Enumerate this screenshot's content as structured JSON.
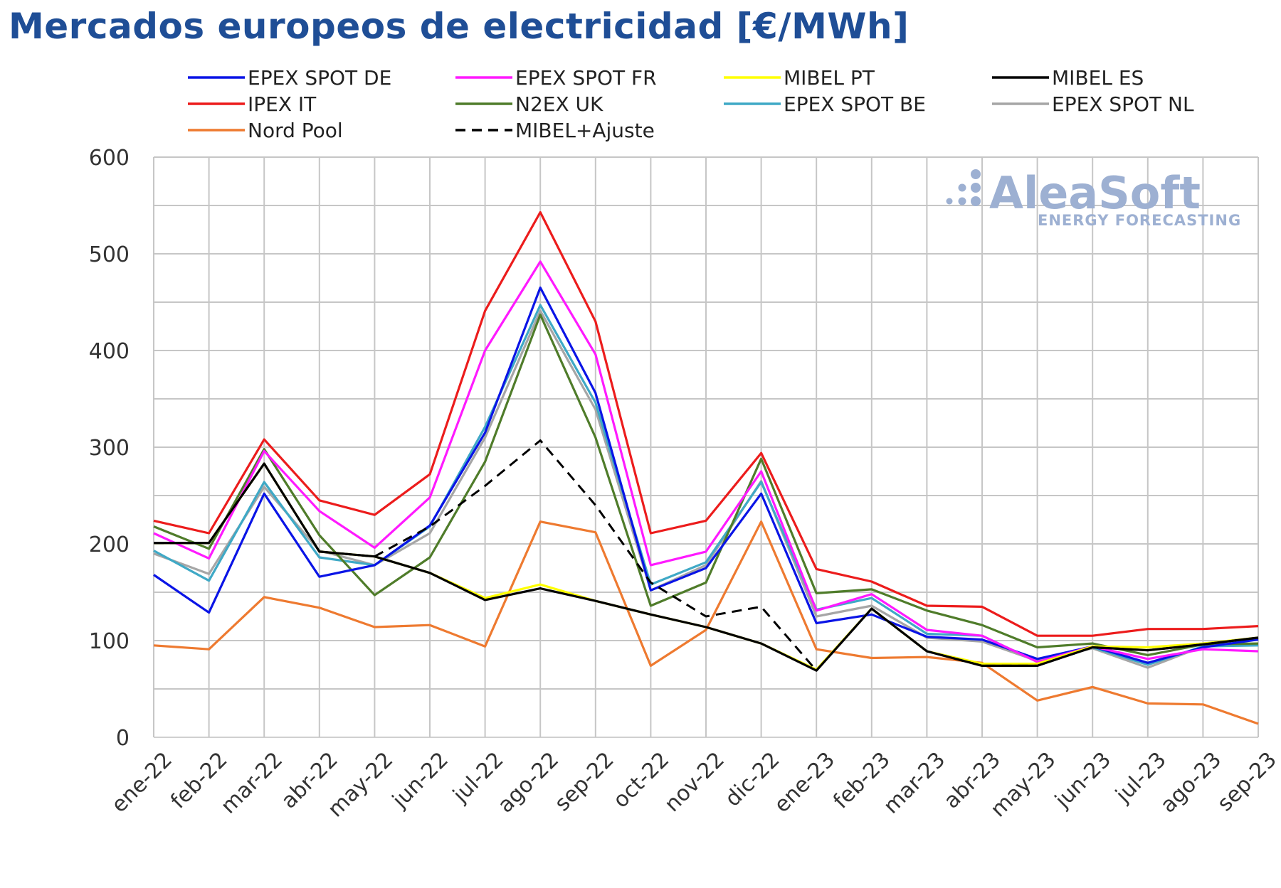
{
  "title": "Mercados europeos de electricidad [€/MWh]",
  "watermark": {
    "name": "AleaSoft",
    "tagline": "ENERGY FORECASTING"
  },
  "chart_data": {
    "type": "line",
    "title": "Mercados europeos de electricidad [€/MWh]",
    "xlabel": "",
    "ylabel": "",
    "ylim": [
      0,
      600
    ],
    "yticks": [
      0,
      100,
      200,
      300,
      400,
      500,
      600
    ],
    "grid": true,
    "legend_position": "top",
    "categories": [
      "ene-22",
      "feb-22",
      "mar-22",
      "abr-22",
      "may-22",
      "jun-22",
      "jul-22",
      "ago-22",
      "sep-22",
      "oct-22",
      "nov-22",
      "dic-22",
      "ene-23",
      "feb-23",
      "mar-23",
      "abr-23",
      "may-23",
      "jun-23",
      "jul-23",
      "ago-23",
      "sep-23"
    ],
    "series": [
      {
        "name": "EPEX SPOT DE",
        "color": "#0a14e6",
        "dash": "solid",
        "values": [
          168,
          129,
          252,
          166,
          178,
          219,
          315,
          465,
          356,
          152,
          175,
          252,
          118,
          127,
          104,
          101,
          81,
          94,
          77,
          93,
          101
        ]
      },
      {
        "name": "EPEX SPOT FR",
        "color": "#ff1aff",
        "dash": "solid",
        "values": [
          211,
          185,
          296,
          234,
          196,
          248,
          400,
          492,
          396,
          178,
          192,
          275,
          131,
          148,
          111,
          105,
          78,
          94,
          81,
          91,
          89
        ]
      },
      {
        "name": "MIBEL PT",
        "color": "#ffff00",
        "dash": "solid",
        "values": [
          201,
          201,
          283,
          192,
          187,
          170,
          144,
          158,
          141,
          127,
          114,
          97,
          70,
          133,
          89,
          76,
          76,
          94,
          93,
          97,
          103
        ]
      },
      {
        "name": "MIBEL ES",
        "color": "#000000",
        "dash": "solid",
        "values": [
          201,
          201,
          283,
          192,
          187,
          170,
          142,
          154,
          141,
          127,
          114,
          97,
          69,
          133,
          89,
          74,
          74,
          93,
          90,
          96,
          103
        ]
      },
      {
        "name": "IPEX IT",
        "color": "#ec1c1c",
        "dash": "solid",
        "values": [
          224,
          211,
          308,
          245,
          230,
          272,
          441,
          543,
          430,
          211,
          224,
          294,
          174,
          161,
          136,
          135,
          105,
          105,
          112,
          112,
          115
        ]
      },
      {
        "name": "N2EX UK",
        "color": "#4f7c2a",
        "dash": "solid",
        "values": [
          218,
          195,
          298,
          209,
          147,
          186,
          285,
          437,
          310,
          136,
          160,
          288,
          149,
          153,
          131,
          116,
          93,
          97,
          85,
          96,
          97
        ]
      },
      {
        "name": "EPEX SPOT BE",
        "color": "#3fa9c6",
        "dash": "solid",
        "values": [
          193,
          162,
          264,
          186,
          178,
          218,
          321,
          447,
          346,
          158,
          181,
          264,
          132,
          144,
          107,
          105,
          78,
          93,
          75,
          94,
          95
        ]
      },
      {
        "name": "EPEX SPOT NL",
        "color": "#a6a6a6",
        "dash": "solid",
        "values": [
          190,
          169,
          259,
          193,
          178,
          211,
          310,
          441,
          339,
          152,
          178,
          265,
          125,
          136,
          103,
          99,
          79,
          92,
          72,
          94,
          96
        ]
      },
      {
        "name": "Nord Pool",
        "color": "#ee7a30",
        "dash": "solid",
        "values": [
          95,
          91,
          145,
          134,
          114,
          116,
          94,
          223,
          212,
          74,
          111,
          223,
          91,
          82,
          83,
          77,
          38,
          52,
          35,
          34,
          14
        ]
      },
      {
        "name": "MIBEL+Ajuste",
        "color": "#000000",
        "dash": "dashed",
        "values": [
          201,
          201,
          283,
          192,
          187,
          218,
          260,
          307,
          240,
          160,
          125,
          135,
          69,
          133,
          89,
          74,
          74,
          93,
          90,
          96,
          103
        ]
      }
    ]
  }
}
